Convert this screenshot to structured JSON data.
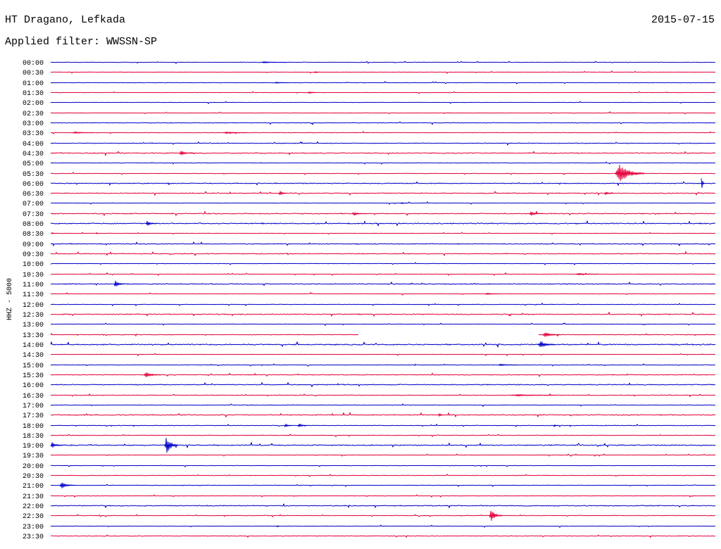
{
  "chart_data": {
    "type": "line",
    "title": "HT Dragano, Lefkada",
    "date": "2015-07-15",
    "subtitle": "Applied filter: WWSSN-SP",
    "ylabel": "HHZ - 5000",
    "xlabel": "",
    "xlim": [
      0,
      30
    ],
    "colors": {
      "hour": "#0000c8",
      "half_hour": "#e2003a"
    },
    "rows": [
      {
        "label": "00:00",
        "noise_level": 0.4,
        "events": [
          {
            "start_min": 9.5,
            "duration_min": 1.1,
            "amplitude": 1.2
          }
        ]
      },
      {
        "label": "00:30",
        "noise_level": 0.3,
        "events": [
          {
            "start_min": 11.9,
            "duration_min": 0.25,
            "amplitude": 2
          }
        ]
      },
      {
        "label": "01:00",
        "noise_level": 0.4,
        "events": [
          {
            "start_min": 10.1,
            "duration_min": 0.6,
            "amplitude": 1
          }
        ]
      },
      {
        "label": "01:30",
        "noise_level": 0.3,
        "events": [
          {
            "start_min": 11.6,
            "duration_min": 0.4,
            "amplitude": 2
          }
        ]
      },
      {
        "label": "02:00",
        "noise_level": 0.3,
        "events": []
      },
      {
        "label": "02:30",
        "noise_level": 0.3,
        "events": []
      },
      {
        "label": "03:00",
        "noise_level": 0.6,
        "events": []
      },
      {
        "label": "03:30",
        "noise_level": 0.5,
        "events": [
          {
            "start_min": 1.0,
            "duration_min": 0.9,
            "amplitude": 1.5
          },
          {
            "start_min": 7.8,
            "duration_min": 1.1,
            "amplitude": 1.5
          }
        ]
      },
      {
        "label": "04:00",
        "noise_level": 0.6,
        "events": []
      },
      {
        "label": "04:30",
        "noise_level": 0.9,
        "events": [
          {
            "start_min": 5.8,
            "duration_min": 0.7,
            "amplitude": 3
          }
        ]
      },
      {
        "label": "05:00",
        "noise_level": 0.4,
        "events": []
      },
      {
        "label": "05:30",
        "noise_level": 0.4,
        "events": [
          {
            "start_min": 25.5,
            "duration_min": 1.3,
            "amplitude": 13
          }
        ]
      },
      {
        "label": "06:00",
        "noise_level": 0.8,
        "events": [
          {
            "start_min": 29.35,
            "duration_min": 0.15,
            "amplitude": 12
          }
        ]
      },
      {
        "label": "06:30",
        "noise_level": 0.8,
        "events": [
          {
            "start_min": 10.3,
            "duration_min": 0.35,
            "amplitude": 4
          },
          {
            "start_min": 25.0,
            "duration_min": 0.4,
            "amplitude": 2.5
          }
        ]
      },
      {
        "label": "07:00",
        "noise_level": 0.3,
        "events": [
          {
            "start_min": 15.8,
            "duration_min": 0.3,
            "amplitude": 1
          }
        ]
      },
      {
        "label": "07:30",
        "noise_level": 0.9,
        "events": [
          {
            "start_min": 13.6,
            "duration_min": 0.6,
            "amplitude": 2.5
          },
          {
            "start_min": 21.6,
            "duration_min": 0.6,
            "amplitude": 3
          }
        ]
      },
      {
        "label": "08:00",
        "noise_level": 1.0,
        "events": [
          {
            "start_min": 4.3,
            "duration_min": 0.5,
            "amplitude": 3.5
          }
        ]
      },
      {
        "label": "08:30",
        "noise_level": 0.3,
        "events": [
          {
            "start_min": 0.05,
            "duration_min": 0.1,
            "amplitude": 2
          },
          {
            "start_min": 2.05,
            "duration_min": 0.1,
            "amplitude": 2
          }
        ]
      },
      {
        "label": "09:00",
        "noise_level": 0.8,
        "events": []
      },
      {
        "label": "09:30",
        "noise_level": 0.8,
        "events": []
      },
      {
        "label": "10:00",
        "noise_level": 0.3,
        "events": []
      },
      {
        "label": "10:30",
        "noise_level": 0.5,
        "events": [
          {
            "start_min": 23.7,
            "duration_min": 1.0,
            "amplitude": 1.5
          }
        ]
      },
      {
        "label": "11:00",
        "noise_level": 0.9,
        "events": [
          {
            "start_min": 2.85,
            "duration_min": 0.5,
            "amplitude": 5
          }
        ]
      },
      {
        "label": "11:30",
        "noise_level": 0.3,
        "events": [
          {
            "start_min": 19.6,
            "duration_min": 0.7,
            "amplitude": 1.5
          }
        ]
      },
      {
        "label": "12:00",
        "noise_level": 0.4,
        "events": []
      },
      {
        "label": "12:30",
        "noise_level": 0.9,
        "events": []
      },
      {
        "label": "13:00",
        "noise_level": 0.3,
        "events": []
      },
      {
        "label": "13:30",
        "noise_level": 0.6,
        "events": [
          {
            "start_min": 22.2,
            "duration_min": 0.8,
            "amplitude": 3.5
          }
        ],
        "gaps": [
          [
            13.9,
            22.0
          ]
        ]
      },
      {
        "label": "14:00",
        "noise_level": 1.1,
        "events": [
          {
            "start_min": 22.0,
            "duration_min": 0.8,
            "amplitude": 5
          }
        ]
      },
      {
        "label": "14:30",
        "noise_level": 0.3,
        "events": []
      },
      {
        "label": "15:00",
        "noise_level": 0.5,
        "events": [
          {
            "start_min": 20.2,
            "duration_min": 0.85,
            "amplitude": 1.5
          }
        ]
      },
      {
        "label": "15:30",
        "noise_level": 0.7,
        "events": [
          {
            "start_min": 4.2,
            "duration_min": 0.8,
            "amplitude": 3.5
          }
        ]
      },
      {
        "label": "16:00",
        "noise_level": 0.8,
        "events": []
      },
      {
        "label": "16:30",
        "noise_level": 0.6,
        "events": [
          {
            "start_min": 20.8,
            "duration_min": 2.0,
            "amplitude": 1.5
          }
        ]
      },
      {
        "label": "17:00",
        "noise_level": 0.5,
        "events": []
      },
      {
        "label": "17:30",
        "noise_level": 0.9,
        "events": [
          {
            "start_min": 17.5,
            "duration_min": 0.2,
            "amplitude": 4
          }
        ]
      },
      {
        "label": "18:00",
        "noise_level": 0.5,
        "events": [
          {
            "start_min": 10.55,
            "duration_min": 0.35,
            "amplitude": 3
          },
          {
            "start_min": 11.15,
            "duration_min": 0.45,
            "amplitude": 3
          },
          {
            "start_min": 22.7,
            "duration_min": 0.2,
            "amplitude": 2
          }
        ]
      },
      {
        "label": "18:30",
        "noise_level": 0.5,
        "events": []
      },
      {
        "label": "19:00",
        "noise_level": 1.0,
        "events": [
          {
            "start_min": 0.0,
            "duration_min": 0.5,
            "amplitude": 4
          },
          {
            "start_min": 5.15,
            "duration_min": 0.6,
            "amplitude": 12
          }
        ]
      },
      {
        "label": "19:30",
        "noise_level": 0.3,
        "events": []
      },
      {
        "label": "20:00",
        "noise_level": 0.3,
        "events": []
      },
      {
        "label": "20:30",
        "noise_level": 0.5,
        "events": []
      },
      {
        "label": "21:00",
        "noise_level": 0.4,
        "events": [
          {
            "start_min": 0.4,
            "duration_min": 0.7,
            "amplitude": 4.5
          }
        ]
      },
      {
        "label": "21:30",
        "noise_level": 0.3,
        "events": []
      },
      {
        "label": "22:00",
        "noise_level": 0.9,
        "events": []
      },
      {
        "label": "22:30",
        "noise_level": 0.5,
        "events": [
          {
            "start_min": 19.8,
            "duration_min": 0.6,
            "amplitude": 8
          }
        ]
      },
      {
        "label": "23:00",
        "noise_level": 0.3,
        "events": [
          {
            "start_min": 10.2,
            "duration_min": 0.15,
            "amplitude": 2
          }
        ]
      },
      {
        "label": "23:30",
        "noise_level": 0.6,
        "events": []
      }
    ]
  }
}
